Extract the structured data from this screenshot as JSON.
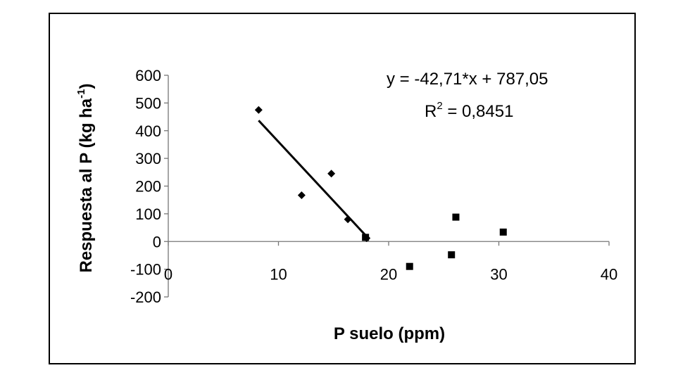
{
  "chart_data": {
    "type": "scatter",
    "title": "",
    "xlabel": "P suelo (ppm)",
    "ylabel_main": "Respuesta al P (kg ha",
    "ylabel_sup": "-1",
    "ylabel_end": ")",
    "xlim": [
      0,
      40
    ],
    "ylim": [
      -200,
      600
    ],
    "x_ticks": [
      0,
      10,
      20,
      30,
      40
    ],
    "x_tick_labels": [
      "0",
      "10",
      "20",
      "30",
      "40"
    ],
    "y_ticks": [
      600,
      500,
      400,
      300,
      200,
      100,
      0,
      -100,
      -200
    ],
    "y_tick_labels": [
      "600",
      "500",
      "400",
      "300",
      "200",
      "100",
      "0",
      "-100",
      "-200"
    ],
    "grid": false,
    "legend": "none",
    "series": [
      {
        "marker": "diamond",
        "color": "#000000",
        "points": [
          {
            "x": 8.2,
            "y": 475
          },
          {
            "x": 12.1,
            "y": 167
          },
          {
            "x": 14.8,
            "y": 245
          },
          {
            "x": 16.3,
            "y": 80
          },
          {
            "x": 18.0,
            "y": 12
          }
        ]
      },
      {
        "marker": "square",
        "color": "#000000",
        "points": [
          {
            "x": 17.9,
            "y": 15
          },
          {
            "x": 21.9,
            "y": -90
          },
          {
            "x": 25.7,
            "y": -48
          },
          {
            "x": 26.1,
            "y": 88
          },
          {
            "x": 30.4,
            "y": 34
          }
        ]
      }
    ],
    "trendline": {
      "slope": -42.71,
      "intercept": 787.05,
      "x_start": 8.2,
      "x_end": 18.0,
      "color": "#000000"
    },
    "annotations": {
      "equation": "y = -42,71*x + 787,05",
      "r2_prefix": "R",
      "r2_sup": "2",
      "r2_value": " = 0,8451"
    }
  }
}
